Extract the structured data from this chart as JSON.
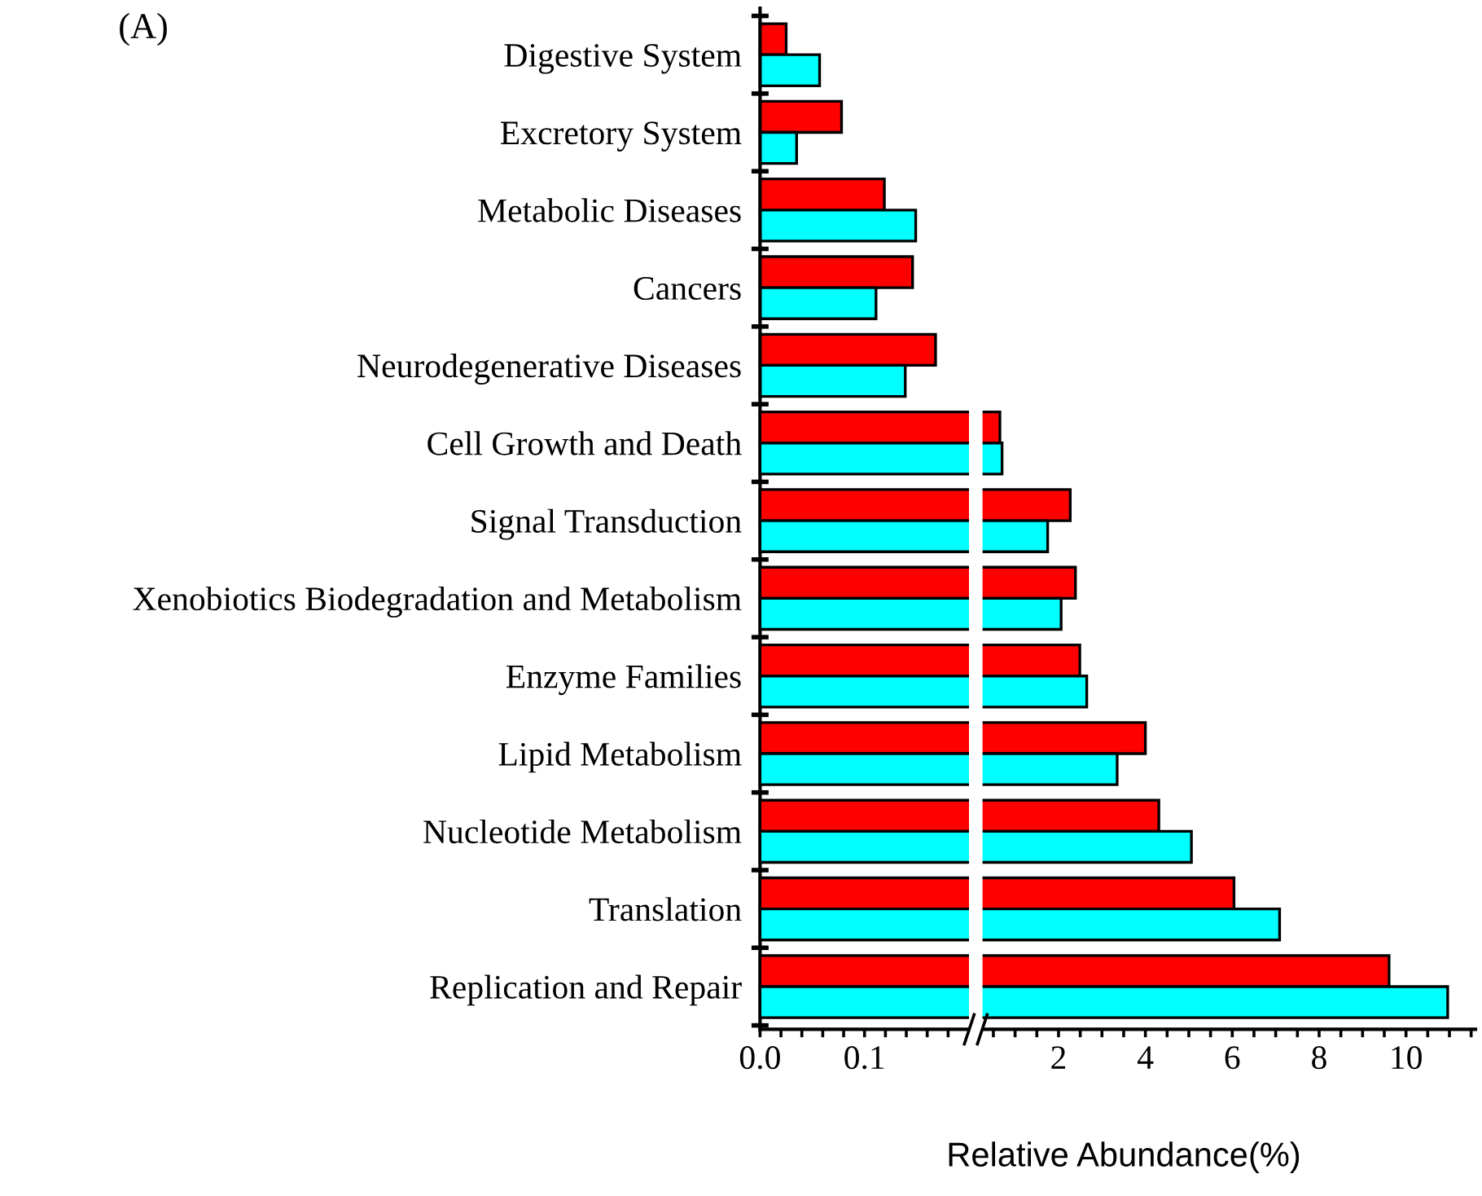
{
  "chart_data": [
    {
      "type": "bar",
      "orientation": "horizontal",
      "annotations": [
        "(A)"
      ],
      "categories": [
        "Digestive System",
        "Excretory System",
        "Metabolic Diseases",
        "Cancers",
        "Neurodegenerative Diseases",
        "Cell Growth and Death",
        "Signal Transduction",
        "Xenobiotics Biodegradation and Metabolism",
        "Enzyme Families",
        "Lipid Metabolism",
        "Nucleotide Metabolism",
        "Translation",
        "Replication and Repair"
      ],
      "series": [
        {
          "color": "#ff0000",
          "values": [
            0.025,
            0.078,
            0.119,
            0.146,
            0.168,
            null,
            null,
            null,
            null,
            null,
            null,
            null,
            null
          ]
        },
        {
          "color": "#00ffff",
          "values": [
            0.057,
            0.035,
            0.149,
            0.111,
            0.139,
            null,
            null,
            null,
            null,
            null,
            null,
            null,
            null
          ]
        }
      ],
      "xlim": [
        0,
        0.2
      ],
      "xticks": [
        {
          "value": 0,
          "label": "0.0"
        },
        {
          "value": 0.02,
          "label": null
        },
        {
          "value": 0.04,
          "label": null
        },
        {
          "value": 0.06,
          "label": null
        },
        {
          "value": 0.08,
          "label": null
        },
        0.1,
        {
          "value": 0.12,
          "label": null
        },
        {
          "value": 0.14,
          "label": null
        },
        {
          "value": 0.16,
          "label": null
        },
        {
          "value": 0.18,
          "label": null
        }
      ],
      "grid": false,
      "legend": false
    },
    {
      "type": "bar",
      "orientation": "horizontal",
      "xlabel": "Relative Abundance(%)",
      "tick_labels": "x",
      "categories": [
        null,
        null,
        null,
        null,
        null,
        null,
        null,
        null,
        null,
        null,
        null,
        null,
        null
      ],
      "series": [
        {
          "color": "#ff0000",
          "values": [
            null,
            null,
            null,
            null,
            null,
            0.65,
            2.27,
            2.39,
            2.49,
            4.0,
            4.31,
            6.04,
            9.61
          ]
        },
        {
          "color": "#00ffff",
          "values": [
            null,
            null,
            null,
            null,
            null,
            0.7,
            1.75,
            2.06,
            2.65,
            3.35,
            5.06,
            7.09,
            10.96
          ]
        }
      ],
      "xlim": [
        0.25,
        11.6
      ],
      "xticks": [
        {
          "value": 0.5,
          "label": null
        },
        {
          "value": 1,
          "label": null
        },
        {
          "value": 1.5,
          "label": null
        },
        2,
        {
          "value": 2.5,
          "label": null
        },
        {
          "value": 3,
          "label": null
        },
        {
          "value": 3.5,
          "label": null
        },
        4,
        {
          "value": 4.5,
          "label": null
        },
        {
          "value": 5,
          "label": null
        },
        {
          "value": 5.5,
          "label": null
        },
        6,
        {
          "value": 6.5,
          "label": null
        },
        {
          "value": 7,
          "label": null
        },
        {
          "value": 7.5,
          "label": null
        },
        8,
        {
          "value": 8.5,
          "label": null
        },
        {
          "value": 9,
          "label": null
        },
        {
          "value": 9.5,
          "label": null
        },
        10,
        {
          "value": 10.5,
          "label": null
        },
        {
          "value": 11,
          "label": null
        },
        {
          "value": 11.5,
          "label": null
        }
      ],
      "grid": false,
      "legend": false
    }
  ]
}
